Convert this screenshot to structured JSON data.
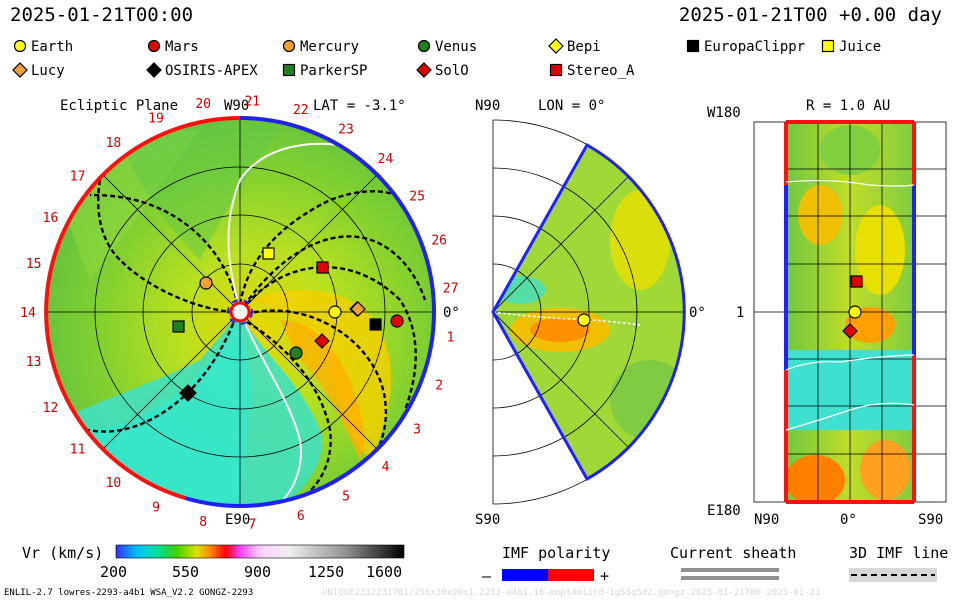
{
  "header": {
    "left_time": "2025-01-21T00:00",
    "right_time": "2025-01-21T00 +0.00 day"
  },
  "legend": [
    {
      "label": "Earth",
      "marker": "circle",
      "color": "#ffff00"
    },
    {
      "label": "Mars",
      "marker": "circle",
      "color": "#e00000"
    },
    {
      "label": "Mercury",
      "marker": "circle",
      "color": "#f0a030"
    },
    {
      "label": "Venus",
      "marker": "circle",
      "color": "#208020"
    },
    {
      "label": "Bepi",
      "marker": "diamond",
      "color": "#ffff00"
    },
    {
      "label": "EuropaClippr",
      "marker": "square",
      "color": "#000000"
    },
    {
      "label": "Juice",
      "marker": "square",
      "color": "#ffff00"
    },
    {
      "label": "Lucy",
      "marker": "diamond",
      "color": "#f0a030"
    },
    {
      "label": "OSIRIS-APEX",
      "marker": "diamond",
      "color": "#000000"
    },
    {
      "label": "ParkerSP",
      "marker": "square",
      "color": "#208020"
    },
    {
      "label": "SolO",
      "marker": "diamond",
      "color": "#e00000"
    },
    {
      "label": "Stereo_A",
      "marker": "square",
      "color": "#e00000"
    }
  ],
  "panels": {
    "ecliptic": {
      "title": "Ecliptic Plane",
      "lat_label": "LAT = -3.1°",
      "top_label": "W90",
      "bottom_label": "E90",
      "right_label": "0°",
      "sectors": [
        "1",
        "2",
        "3",
        "4",
        "5",
        "6",
        "7",
        "8",
        "9",
        "10",
        "11",
        "12",
        "13",
        "14",
        "15",
        "16",
        "17",
        "18",
        "19",
        "20",
        "21",
        "22",
        "23",
        "24",
        "25",
        "26",
        "27"
      ]
    },
    "meridional": {
      "lon_label": "LON = 0°",
      "top_label": "N90",
      "bottom_label": "S90",
      "right_label": "0°"
    },
    "map": {
      "r_label": "R = 1.0 AU",
      "top_label": "W180",
      "bottom_label": "E180",
      "y_mid_label": "1",
      "x_labels": [
        "N90",
        "0°",
        "S90"
      ]
    }
  },
  "colorbar": {
    "title": "Vr (km/s)",
    "ticks": [
      "200",
      "550",
      "900",
      "1250",
      "1600"
    ]
  },
  "imf": {
    "title": "IMF polarity",
    "minus": "–",
    "plus": "+",
    "neg_color": "#0000ff",
    "pos_color": "#ff0000"
  },
  "sheath": {
    "title": "Current sheath"
  },
  "imf3d": {
    "title": "3D IMF line"
  },
  "footer": {
    "left": "ENLIL-2.7 lowres-2293-a4b1 WSA_V2.2 GONGZ-2293",
    "right": "UNIQUE2312231701/256x30x90x1.2253-a4b1.16-mopt4mi1cd-1g53q5d2.gongz-2025-01-21T00   2025-01-21"
  }
}
